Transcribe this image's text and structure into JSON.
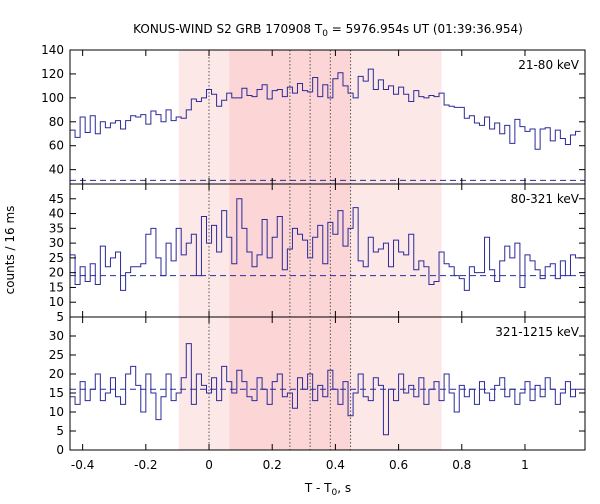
{
  "chart_data": {
    "type": "line",
    "title_parts": {
      "a": "KONUS-WIND S2 GRB 170908 T",
      "sub": "0",
      "b": " = 5976.954s UT (01:39:36.954)"
    },
    "xlabel_parts": {
      "a": "T - T",
      "sub": "0",
      "b": ", s"
    },
    "ylabel": "counts / 16 ms",
    "xlim": [
      -0.44,
      1.19
    ],
    "x_ticks": [
      -0.4,
      -0.2,
      0,
      0.2,
      0.4,
      0.6,
      0.8,
      1.0
    ],
    "x_tick_labels": [
      "-0.4",
      "-0.2",
      "0",
      "0.2",
      "0.4",
      "0.6",
      "0.8",
      "1"
    ],
    "bin_width_s": 0.016,
    "bin_start_s": -0.44,
    "shaded_regions": [
      {
        "x": [
          -0.096,
          0.736
        ],
        "color": "#fde8e8"
      },
      {
        "x": [
          0.064,
          0.448
        ],
        "color": "#fcd5d6"
      }
    ],
    "vertical_lines_x": [
      0.0,
      0.256,
      0.32,
      0.384,
      0.448
    ],
    "series_color": "#2b2b9a",
    "panels": [
      {
        "label": "21-80 keV",
        "ylim": [
          28,
          140
        ],
        "y_ticks": [
          40,
          60,
          80,
          100,
          120,
          140
        ],
        "y_tick_labels": [
          "40",
          "60",
          "80",
          "100",
          "120",
          "140"
        ],
        "background": 31,
        "values": [
          73,
          67,
          84,
          71,
          85,
          70,
          80,
          75,
          79,
          81,
          74,
          81,
          85,
          84,
          86,
          78,
          89,
          86,
          80,
          90,
          81,
          84,
          83,
          90,
          99,
          97,
          100,
          107,
          103,
          93,
          98,
          104,
          100,
          100,
          108,
          102,
          101,
          107,
          111,
          99,
          106,
          107,
          101,
          109,
          104,
          112,
          106,
          105,
          117,
          101,
          111,
          100,
          116,
          121,
          110,
          104,
          100,
          118,
          114,
          124,
          107,
          115,
          107,
          110,
          103,
          109,
          103,
          97,
          106,
          101,
          100,
          102,
          101,
          104,
          94,
          93,
          92,
          92,
          83,
          85,
          79,
          77,
          84,
          74,
          79,
          70,
          77,
          62,
          82,
          76,
          72,
          74,
          57,
          74,
          75,
          64,
          73,
          66,
          61,
          69,
          72
        ]
      },
      {
        "label": "80-321 keV",
        "ylim": [
          5,
          50
        ],
        "y_ticks": [
          5,
          10,
          15,
          20,
          25,
          30,
          35,
          40,
          45
        ],
        "y_tick_labels": [
          "5",
          "10",
          "15",
          "20",
          "25",
          "30",
          "35",
          "40",
          "45"
        ],
        "background": 19,
        "values": [
          26,
          16,
          22,
          17,
          23,
          16,
          29,
          22,
          25,
          27,
          14,
          20,
          22,
          22,
          23,
          33,
          35,
          25,
          19,
          30,
          24,
          35,
          26,
          30,
          33,
          19,
          39,
          30,
          36,
          27,
          41,
          32,
          23,
          45,
          35,
          27,
          22,
          26,
          38,
          25,
          32,
          39,
          21,
          28,
          35,
          33,
          31,
          25,
          32,
          36,
          23,
          37,
          33,
          41,
          29,
          35,
          42,
          24,
          22,
          32,
          27,
          28,
          30,
          22,
          31,
          27,
          26,
          33,
          21,
          24,
          22,
          16,
          17,
          27,
          23,
          22,
          19,
          18,
          14,
          22,
          20,
          20,
          32,
          21,
          17,
          24,
          29,
          25,
          30,
          15,
          26,
          24,
          21,
          18,
          22,
          23,
          18,
          24,
          19,
          26,
          25
        ]
      },
      {
        "label": "321-1215 keV",
        "ylim": [
          0,
          35
        ],
        "y_ticks": [
          0,
          5,
          10,
          15,
          20,
          25,
          30
        ],
        "y_tick_labels": [
          "0",
          "5",
          "10",
          "15",
          "20",
          "25",
          "30"
        ],
        "background": 16,
        "values": [
          14,
          12,
          18,
          13,
          16,
          20,
          13,
          15,
          19,
          14,
          12,
          20,
          22,
          17,
          10,
          20,
          15,
          8,
          14,
          20,
          13,
          15,
          19,
          28,
          12,
          20,
          17,
          15,
          19,
          13,
          22,
          18,
          15,
          21,
          18,
          14,
          13,
          19,
          16,
          12,
          18,
          20,
          14,
          15,
          11,
          19,
          16,
          20,
          13,
          17,
          14,
          21,
          16,
          12,
          18,
          9,
          15,
          20,
          14,
          13,
          19,
          17,
          4,
          16,
          13,
          20,
          15,
          17,
          14,
          19,
          12,
          16,
          18,
          13,
          20,
          15,
          10,
          17,
          14,
          16,
          12,
          18,
          15,
          13,
          17,
          19,
          14,
          16,
          12,
          15,
          18,
          13,
          17,
          14,
          19,
          16,
          12,
          15,
          18,
          14,
          16
        ]
      }
    ]
  }
}
